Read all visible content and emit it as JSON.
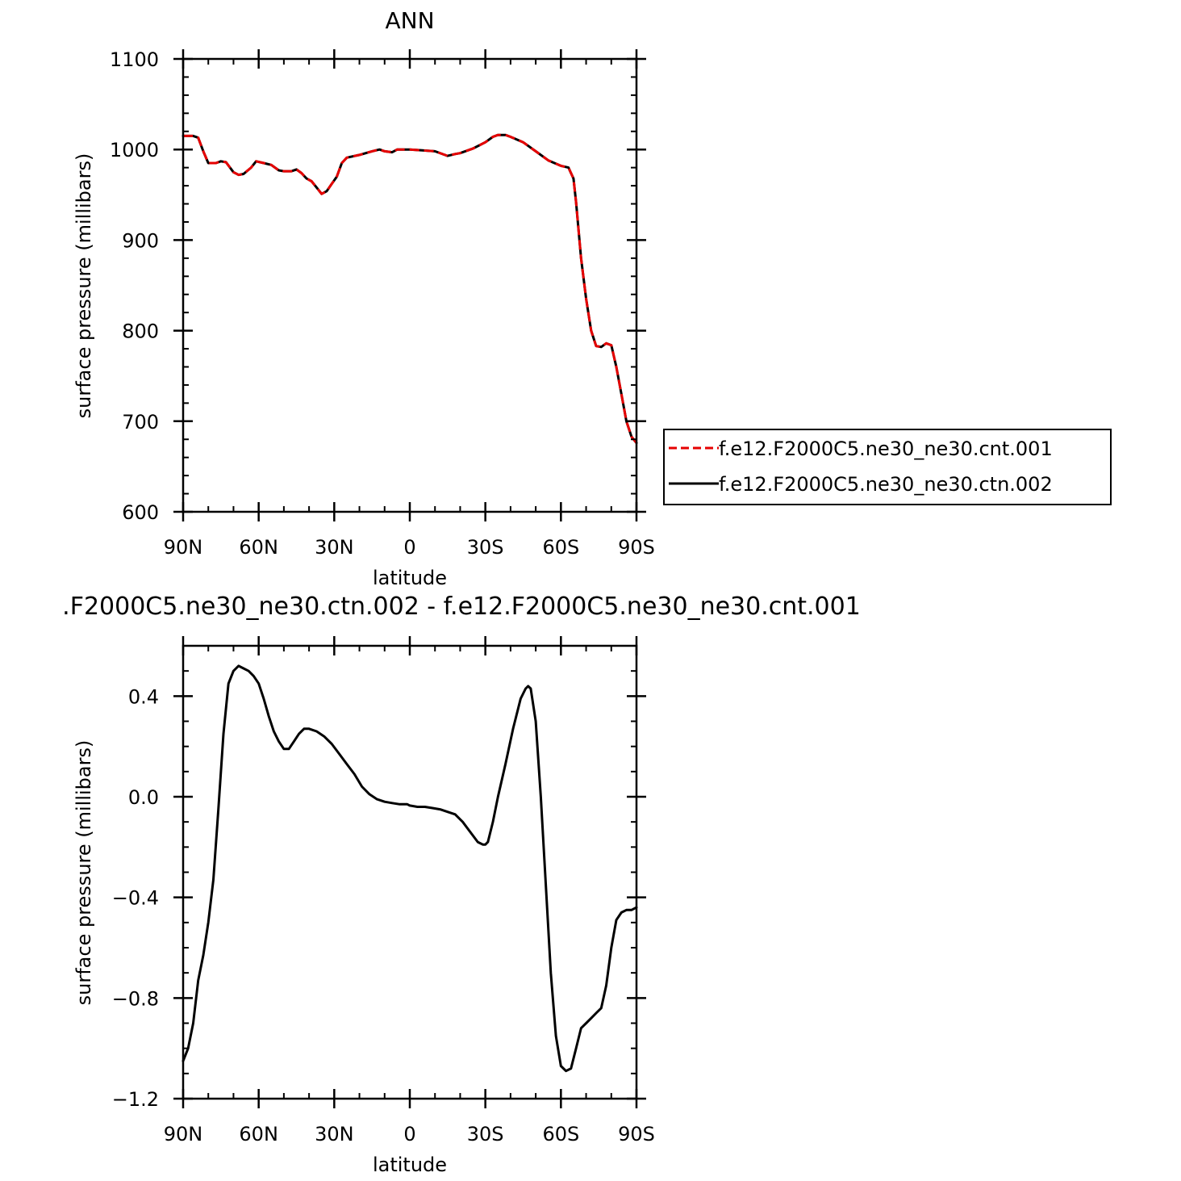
{
  "chart_data": [
    {
      "type": "line",
      "title": "ANN",
      "xlabel": "latitude",
      "ylabel": "surface pressure (millibars)",
      "xlim": [
        90,
        -90
      ],
      "ylim": [
        600,
        1100
      ],
      "x_ticks": [
        90,
        60,
        30,
        0,
        -30,
        -60,
        -90
      ],
      "x_tick_labels": [
        "90N",
        "60N",
        "30N",
        "0",
        "30S",
        "60S",
        "90S"
      ],
      "y_ticks": [
        600,
        700,
        800,
        900,
        1000,
        1100
      ],
      "y_tick_labels": [
        "600",
        "700",
        "800",
        "900",
        "1000",
        "1100"
      ],
      "grid": false,
      "legend": "right",
      "series": [
        {
          "name": "f.e12.F2000C5.ne30_ne30.cnt.001",
          "color": "#e60000",
          "dash": "dashed",
          "x": [
            90,
            86,
            84,
            82,
            80,
            77,
            75,
            73,
            70,
            68,
            66,
            63,
            61,
            58,
            55,
            52,
            50,
            47,
            45,
            43,
            41,
            39,
            37,
            35,
            33,
            31,
            29,
            27,
            25,
            20,
            15,
            12,
            10,
            7,
            5,
            2,
            0,
            -5,
            -10,
            -15,
            -18,
            -20,
            -25,
            -30,
            -33,
            -35,
            -38,
            -40,
            -45,
            -50,
            -55,
            -60,
            -63,
            -65,
            -66,
            -68,
            -70,
            -72,
            -74,
            -76,
            -78,
            -80,
            -82,
            -84,
            -86,
            -88,
            -90
          ],
          "y": [
            1015,
            1015,
            1013,
            998,
            985,
            985,
            987,
            986,
            975,
            972,
            973,
            980,
            987,
            985,
            983,
            977,
            976,
            976,
            978,
            974,
            968,
            965,
            958,
            951,
            954,
            962,
            970,
            985,
            991,
            994,
            998,
            1000,
            998,
            997,
            1000,
            1000,
            1000,
            999,
            998,
            993,
            995,
            996,
            1001,
            1008,
            1014,
            1016,
            1016,
            1014,
            1008,
            998,
            988,
            982,
            980,
            968,
            942,
            880,
            835,
            800,
            783,
            782,
            786,
            784,
            760,
            730,
            700,
            683,
            676
          ]
        },
        {
          "name": "f.e12.F2000C5.ne30_ne30.ctn.002",
          "color": "#000000",
          "dash": "solid",
          "x": [
            90,
            86,
            84,
            82,
            80,
            77,
            75,
            73,
            70,
            68,
            66,
            63,
            61,
            58,
            55,
            52,
            50,
            47,
            45,
            43,
            41,
            39,
            37,
            35,
            33,
            31,
            29,
            27,
            25,
            20,
            15,
            12,
            10,
            7,
            5,
            2,
            0,
            -5,
            -10,
            -15,
            -18,
            -20,
            -25,
            -30,
            -33,
            -35,
            -38,
            -40,
            -45,
            -50,
            -55,
            -60,
            -63,
            -65,
            -66,
            -68,
            -70,
            -72,
            -74,
            -76,
            -78,
            -80,
            -82,
            -84,
            -86,
            -88,
            -90
          ],
          "y": [
            1015,
            1015,
            1013,
            998,
            985,
            985,
            987,
            986,
            975,
            972,
            973,
            980,
            987,
            985,
            983,
            977,
            976,
            976,
            978,
            974,
            968,
            965,
            958,
            951,
            954,
            962,
            970,
            985,
            991,
            994,
            998,
            1000,
            998,
            997,
            1000,
            1000,
            1000,
            999,
            998,
            993,
            995,
            996,
            1001,
            1008,
            1014,
            1016,
            1016,
            1014,
            1008,
            998,
            988,
            982,
            980,
            968,
            942,
            880,
            835,
            800,
            783,
            782,
            786,
            784,
            760,
            730,
            700,
            683,
            676
          ]
        }
      ]
    },
    {
      "type": "line",
      "title": ".F2000C5.ne30_ne30.ctn.002 - f.e12.F2000C5.ne30_ne30.cnt.001",
      "xlabel": "latitude",
      "ylabel": "surface pressure (millibars)",
      "xlim": [
        90,
        -90
      ],
      "ylim": [
        -1.2,
        0.6
      ],
      "x_ticks": [
        90,
        60,
        30,
        0,
        -30,
        -60,
        -90
      ],
      "x_tick_labels": [
        "90N",
        "60N",
        "30N",
        "0",
        "30S",
        "60S",
        "90S"
      ],
      "y_ticks": [
        -1.2,
        -0.8,
        -0.4,
        0.0,
        0.4
      ],
      "y_tick_labels": [
        "−1.2",
        "−0.8",
        "−0.4",
        "0.0",
        "0.4"
      ],
      "grid": false,
      "series": [
        {
          "color": "#000000",
          "dash": "solid",
          "x": [
            90,
            88,
            86,
            84,
            82,
            80,
            78,
            76,
            74,
            72,
            70,
            68,
            66,
            64,
            63,
            62,
            60,
            58,
            56,
            54,
            52,
            50,
            48,
            46,
            44,
            42,
            40,
            37,
            34,
            31,
            28,
            25,
            22,
            19,
            16,
            13,
            10,
            7,
            4,
            1,
            0,
            -3,
            -6,
            -9,
            -12,
            -15,
            -18,
            -21,
            -24,
            -27,
            -29,
            -30,
            -31,
            -33,
            -35,
            -38,
            -41,
            -44,
            -46,
            -47,
            -48,
            -50,
            -52,
            -54,
            -56,
            -58,
            -60,
            -62,
            -64,
            -66,
            -67,
            -68,
            -70,
            -72,
            -74,
            -76,
            -78,
            -80,
            -82,
            -84,
            -86,
            -88,
            -90
          ],
          "y": [
            -1.05,
            -1.0,
            -0.9,
            -0.73,
            -0.63,
            -0.5,
            -0.33,
            -0.05,
            0.25,
            0.45,
            0.5,
            0.52,
            0.51,
            0.5,
            0.49,
            0.48,
            0.45,
            0.39,
            0.32,
            0.26,
            0.22,
            0.19,
            0.19,
            0.22,
            0.25,
            0.27,
            0.27,
            0.26,
            0.24,
            0.21,
            0.17,
            0.13,
            0.09,
            0.04,
            0.01,
            -0.01,
            -0.02,
            -0.025,
            -0.03,
            -0.03,
            -0.035,
            -0.04,
            -0.04,
            -0.045,
            -0.05,
            -0.06,
            -0.07,
            -0.1,
            -0.14,
            -0.18,
            -0.19,
            -0.19,
            -0.18,
            -0.1,
            0.0,
            0.13,
            0.27,
            0.39,
            0.43,
            0.44,
            0.43,
            0.3,
            0.0,
            -0.35,
            -0.7,
            -0.95,
            -1.07,
            -1.09,
            -1.08,
            -1.0,
            -0.96,
            -0.92,
            -0.9,
            -0.88,
            -0.86,
            -0.84,
            -0.75,
            -0.6,
            -0.49,
            -0.46,
            -0.45,
            -0.45,
            -0.44
          ]
        }
      ]
    }
  ]
}
